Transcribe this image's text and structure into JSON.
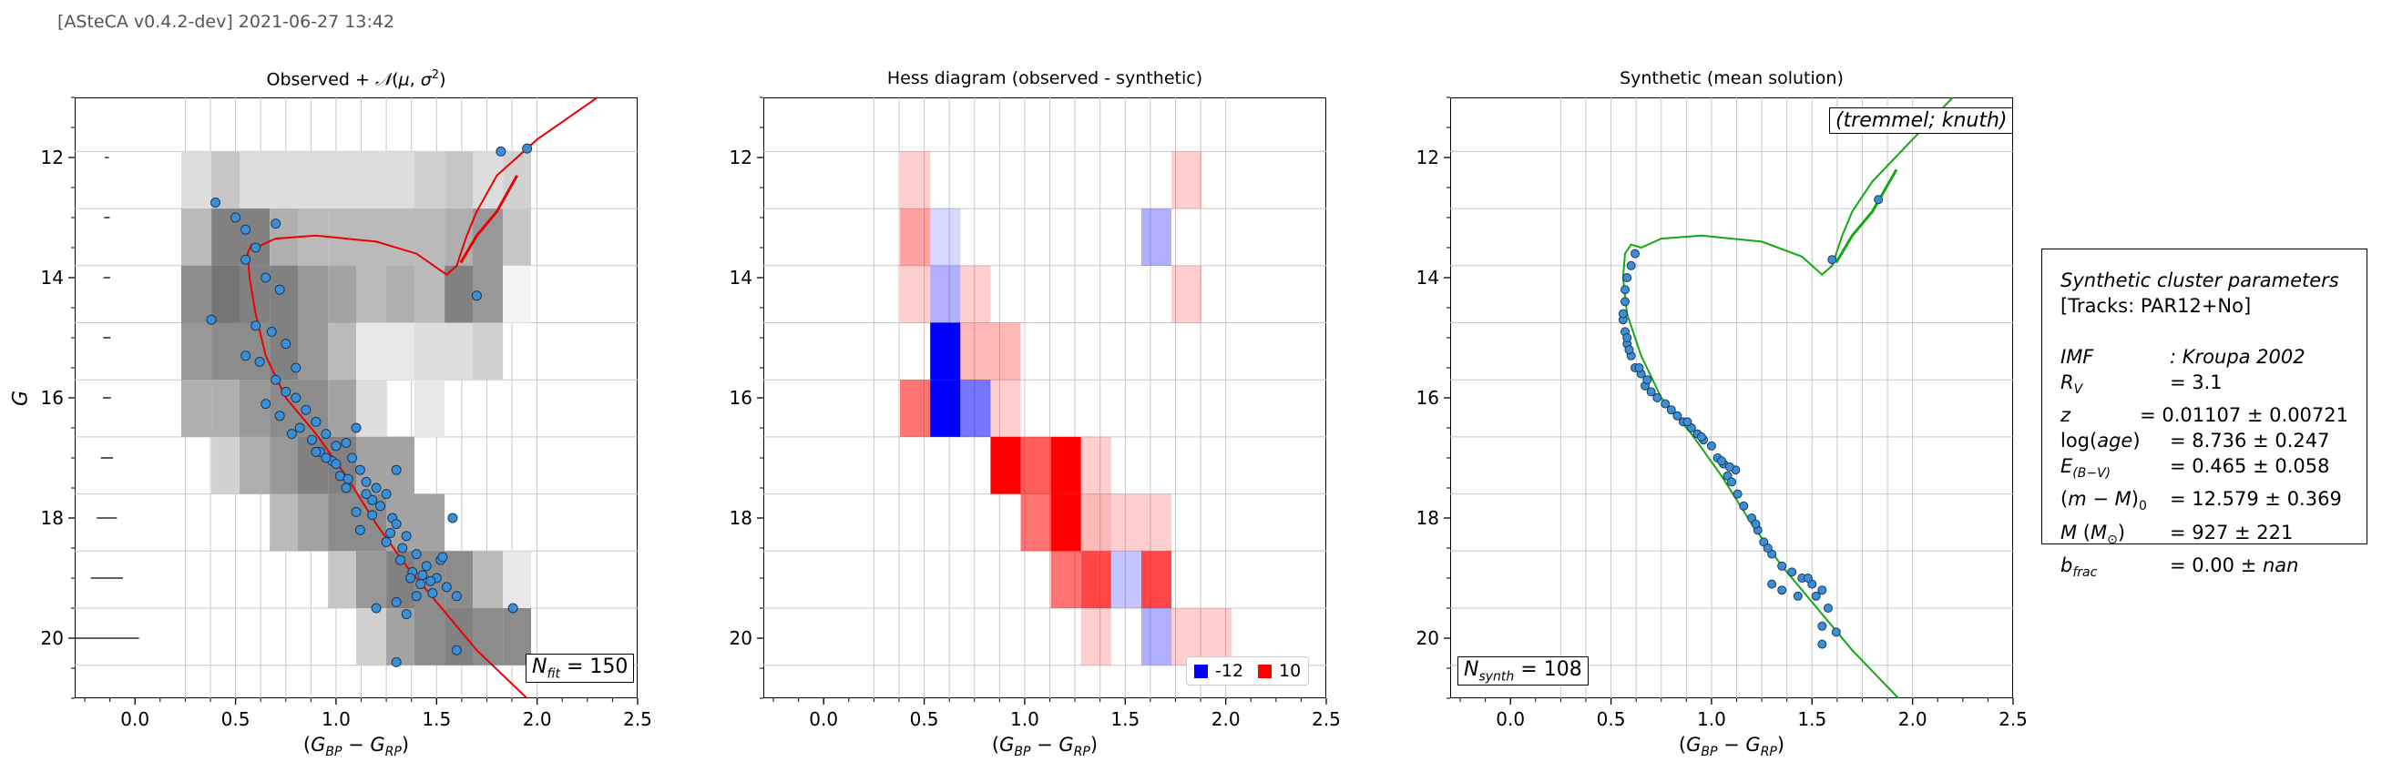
{
  "header": "[ASteCA v0.4.2-dev] 2021-06-27 13:42",
  "panels": {
    "left": {
      "title": "Observed + 𝒩(μ, σ²)",
      "ylabel": "G",
      "xlabel": "(G_BP − G_RP)",
      "box": "N_fit = 150"
    },
    "middle": {
      "title": "Hess diagram (observed - synthetic)",
      "xlabel": "(G_BP − G_RP)",
      "legend_neg": "-12",
      "legend_pos": "10"
    },
    "right": {
      "title": "Synthetic (mean solution)",
      "xlabel": "(G_BP − G_RP)",
      "box_top": "(tremmel; knuth)",
      "box_bottom": "N_synth = 108"
    }
  },
  "info": {
    "title": "Synthetic cluster parameters",
    "tracks": "[Tracks: PAR12+No]",
    "rows": [
      {
        "label": "IMF",
        "value": ": Kroupa 2002"
      },
      {
        "label": "R_V",
        "value": "= 3.1"
      },
      {
        "label": "z",
        "value": "= 0.01107 ± 0.00721"
      },
      {
        "label": "log(age)",
        "value": "= 8.736 ± 0.247"
      },
      {
        "label": "E_(B−V)",
        "value": "= 0.465 ± 0.058"
      },
      {
        "label": "(m − M)_0",
        "value": "= 12.579 ± 0.369"
      },
      {
        "label": "M (M_⊙)",
        "value": "= 927 ± 221"
      },
      {
        "label": "b_frac",
        "value": "= 0.00 ± nan"
      }
    ]
  },
  "colors": {
    "observed": "#3c8fd4",
    "synthetic": "#3c8fd4",
    "isochrone_left": "#ee0000",
    "isochrone_right": "#11aa11",
    "neg": "#0000ff",
    "pos": "#ff0000"
  },
  "chart_data": [
    {
      "type": "scatter",
      "name": "observed",
      "xlim": [
        -0.3,
        2.5
      ],
      "ylim": [
        21.0,
        11.0
      ],
      "xticks": [
        0.0,
        0.5,
        1.0,
        1.5,
        2.0,
        2.5
      ],
      "yticks": [
        12,
        14,
        16,
        18,
        20
      ],
      "xbins": [
        0.23,
        0.38,
        0.52,
        0.67,
        0.81,
        0.96,
        1.1,
        1.25,
        1.39,
        1.54,
        1.68,
        1.83,
        1.97
      ],
      "ybins": [
        11.9,
        12.85,
        13.8,
        14.75,
        15.7,
        16.65,
        17.6,
        18.55,
        19.5,
        20.45
      ],
      "density": [
        [
          0.15,
          0.25,
          0.15,
          0.15,
          0.15,
          0.15,
          0.15,
          0.15,
          0.2,
          0.25,
          0.15,
          0.2
        ],
        [
          0.3,
          0.55,
          0.55,
          0.35,
          0.3,
          0.3,
          0.3,
          0.3,
          0.3,
          0.35,
          0.45,
          0.25
        ],
        [
          0.5,
          0.6,
          0.55,
          0.55,
          0.45,
          0.4,
          0.3,
          0.35,
          0.3,
          0.55,
          0.45,
          0.05
        ],
        [
          0.45,
          0.5,
          0.5,
          0.55,
          0.45,
          0.3,
          0.1,
          0.1,
          0.15,
          0.15,
          0.2,
          0
        ],
        [
          0.35,
          0.35,
          0.45,
          0.5,
          0.5,
          0.4,
          0.15,
          0.0,
          0.1,
          0.0,
          0.0,
          0
        ],
        [
          0,
          0.2,
          0.35,
          0.45,
          0.55,
          0.55,
          0.4,
          0.4,
          0.0,
          0.0,
          0.0,
          0
        ],
        [
          0,
          0,
          0,
          0.3,
          0.4,
          0.5,
          0.5,
          0.4,
          0.4,
          0.0,
          0.0,
          0
        ],
        [
          0,
          0,
          0,
          0,
          0,
          0.25,
          0.45,
          0.55,
          0.5,
          0.5,
          0.3,
          0.1
        ],
        [
          0,
          0,
          0,
          0,
          0,
          0,
          0.2,
          0.4,
          0.5,
          0.55,
          0.5,
          0.5
        ]
      ],
      "errors": [
        {
          "y": 12.0,
          "xerr": 0.005
        },
        {
          "y": 13.0,
          "xerr": 0.007
        },
        {
          "y": 14.0,
          "xerr": 0.008
        },
        {
          "y": 15.0,
          "xerr": 0.009
        },
        {
          "y": 16.0,
          "xerr": 0.01
        },
        {
          "y": 17.0,
          "xerr": 0.015
        },
        {
          "y": 18.0,
          "xerr": 0.025
        },
        {
          "y": 19.0,
          "xerr": 0.04
        },
        {
          "y": 20.0,
          "xerr": 0.08
        }
      ],
      "points": [
        [
          1.82,
          11.9
        ],
        [
          1.95,
          11.85
        ],
        [
          0.4,
          12.75
        ],
        [
          0.55,
          13.2
        ],
        [
          0.7,
          13.1
        ],
        [
          0.5,
          13.0
        ],
        [
          0.6,
          13.5
        ],
        [
          0.55,
          13.7
        ],
        [
          0.65,
          14.0
        ],
        [
          0.72,
          14.2
        ],
        [
          0.38,
          14.7
        ],
        [
          0.6,
          14.8
        ],
        [
          0.68,
          14.9
        ],
        [
          0.75,
          15.1
        ],
        [
          0.55,
          15.3
        ],
        [
          0.62,
          15.4
        ],
        [
          0.8,
          15.5
        ],
        [
          0.7,
          15.7
        ],
        [
          0.75,
          15.9
        ],
        [
          0.65,
          16.1
        ],
        [
          0.8,
          16.0
        ],
        [
          0.85,
          16.2
        ],
        [
          0.72,
          16.3
        ],
        [
          0.9,
          16.4
        ],
        [
          0.82,
          16.5
        ],
        [
          0.95,
          16.6
        ],
        [
          0.88,
          16.7
        ],
        [
          1.0,
          16.8
        ],
        [
          0.92,
          16.9
        ],
        [
          1.05,
          16.75
        ],
        [
          1.1,
          16.5
        ],
        [
          1.08,
          17.0
        ],
        [
          0.98,
          17.05
        ],
        [
          1.12,
          17.2
        ],
        [
          1.02,
          17.3
        ],
        [
          1.15,
          17.4
        ],
        [
          1.2,
          17.5
        ],
        [
          1.05,
          17.5
        ],
        [
          1.25,
          17.6
        ],
        [
          1.18,
          17.7
        ],
        [
          1.3,
          17.2
        ],
        [
          1.22,
          17.8
        ],
        [
          1.1,
          17.9
        ],
        [
          1.28,
          18.0
        ],
        [
          1.3,
          18.1
        ],
        [
          1.35,
          18.3
        ],
        [
          1.25,
          18.4
        ],
        [
          1.4,
          18.6
        ],
        [
          1.32,
          18.7
        ],
        [
          1.45,
          18.8
        ],
        [
          1.38,
          18.9
        ],
        [
          1.5,
          19.0
        ],
        [
          1.42,
          19.1
        ],
        [
          1.55,
          19.15
        ],
        [
          1.48,
          19.25
        ],
        [
          1.3,
          19.4
        ],
        [
          1.4,
          19.3
        ],
        [
          1.6,
          19.3
        ],
        [
          1.2,
          19.5
        ],
        [
          1.35,
          19.6
        ],
        [
          1.52,
          18.7
        ],
        [
          1.58,
          18.0
        ],
        [
          1.7,
          14.3
        ],
        [
          1.88,
          19.5
        ],
        [
          1.3,
          20.4
        ],
        [
          1.6,
          20.2
        ],
        [
          0.9,
          16.9
        ],
        [
          1.0,
          17.1
        ],
        [
          1.15,
          17.6
        ],
        [
          1.12,
          18.2
        ],
        [
          0.78,
          16.6
        ],
        [
          0.95,
          17.0
        ],
        [
          1.06,
          17.35
        ],
        [
          1.18,
          17.95
        ],
        [
          1.27,
          18.25
        ],
        [
          1.33,
          18.5
        ],
        [
          1.43,
          18.95
        ],
        [
          1.47,
          19.05
        ],
        [
          1.37,
          19.0
        ],
        [
          1.53,
          18.65
        ]
      ],
      "isochrone": [
        [
          1.95,
          21.0
        ],
        [
          1.7,
          20.2
        ],
        [
          1.5,
          19.4
        ],
        [
          1.35,
          18.8
        ],
        [
          1.2,
          18.1
        ],
        [
          1.05,
          17.3
        ],
        [
          0.9,
          16.6
        ],
        [
          0.75,
          16.0
        ],
        [
          0.65,
          15.3
        ],
        [
          0.6,
          14.6
        ],
        [
          0.57,
          14.0
        ],
        [
          0.56,
          13.6
        ],
        [
          0.58,
          13.45
        ],
        [
          0.6,
          13.5
        ],
        [
          0.7,
          13.35
        ],
        [
          0.9,
          13.3
        ],
        [
          1.2,
          13.4
        ],
        [
          1.4,
          13.6
        ],
        [
          1.55,
          13.95
        ],
        [
          1.6,
          13.8
        ],
        [
          1.65,
          13.3
        ],
        [
          1.7,
          12.9
        ],
        [
          1.8,
          12.3
        ],
        [
          2.0,
          11.7
        ],
        [
          2.3,
          11.0
        ]
      ],
      "isochrone_branch": [
        [
          1.62,
          13.75
        ],
        [
          1.7,
          13.3
        ],
        [
          1.8,
          12.9
        ],
        [
          1.9,
          12.3
        ]
      ]
    },
    {
      "type": "heatmap",
      "name": "hess",
      "xlim": [
        -0.3,
        2.5
      ],
      "ylim": [
        21.0,
        11.0
      ],
      "xticks": [
        0.0,
        0.5,
        1.0,
        1.5,
        2.0,
        2.5
      ],
      "yticks": [
        12,
        14,
        16,
        18,
        20
      ],
      "xbins": [
        0.38,
        0.53,
        0.68,
        0.83,
        0.98,
        1.13,
        1.28,
        1.43,
        1.58,
        1.73,
        1.88,
        2.03
      ],
      "ybins": [
        11.9,
        12.85,
        13.8,
        14.75,
        15.7,
        16.65,
        17.6,
        18.55,
        19.5,
        20.45
      ],
      "values": [
        [
          1,
          0,
          0,
          0,
          0,
          0,
          0,
          0,
          0,
          1,
          0
        ],
        [
          3,
          -1,
          0,
          0,
          0,
          0,
          0,
          0,
          -3,
          0,
          0
        ],
        [
          1,
          -3,
          1,
          0,
          0,
          0,
          0,
          0,
          0,
          1,
          0
        ],
        [
          0,
          -12,
          2,
          2,
          0,
          0,
          0,
          0,
          0,
          0,
          0
        ],
        [
          5,
          -12,
          -6,
          1,
          0,
          0,
          0,
          0,
          0,
          0,
          0
        ],
        [
          0,
          0,
          0,
          10,
          6,
          10,
          1,
          0,
          0,
          0,
          0
        ],
        [
          0,
          0,
          0,
          0,
          5,
          10,
          2,
          1,
          1,
          0,
          0
        ],
        [
          0,
          0,
          0,
          0,
          0,
          5,
          7,
          -2,
          7,
          0,
          0
        ],
        [
          0,
          0,
          0,
          0,
          0,
          0,
          1,
          0,
          -3,
          1,
          1
        ]
      ],
      "vmin": -12,
      "vmax": 10
    },
    {
      "type": "scatter",
      "name": "synthetic",
      "xlim": [
        -0.3,
        2.5
      ],
      "ylim": [
        21.0,
        11.0
      ],
      "xticks": [
        0.0,
        0.5,
        1.0,
        1.5,
        2.0,
        2.5
      ],
      "yticks": [
        12,
        14,
        16,
        18,
        20
      ],
      "points": [
        [
          1.83,
          12.7
        ],
        [
          1.6,
          13.7
        ],
        [
          0.62,
          13.6
        ],
        [
          0.6,
          13.8
        ],
        [
          0.58,
          14.0
        ],
        [
          0.57,
          14.4
        ],
        [
          0.56,
          14.7
        ],
        [
          0.57,
          14.9
        ],
        [
          0.58,
          15.1
        ],
        [
          0.6,
          15.3
        ],
        [
          0.62,
          15.5
        ],
        [
          0.65,
          15.6
        ],
        [
          0.67,
          15.8
        ],
        [
          0.7,
          15.9
        ],
        [
          0.73,
          16.0
        ],
        [
          0.77,
          16.1
        ],
        [
          0.8,
          16.2
        ],
        [
          0.83,
          16.3
        ],
        [
          0.86,
          16.4
        ],
        [
          0.9,
          16.5
        ],
        [
          0.93,
          16.6
        ],
        [
          0.96,
          16.7
        ],
        [
          1.0,
          16.8
        ],
        [
          1.03,
          17.0
        ],
        [
          1.06,
          17.1
        ],
        [
          1.08,
          17.3
        ],
        [
          1.1,
          17.4
        ],
        [
          1.13,
          17.6
        ],
        [
          1.16,
          17.8
        ],
        [
          1.2,
          18.0
        ],
        [
          1.23,
          18.2
        ],
        [
          1.26,
          18.4
        ],
        [
          1.3,
          18.6
        ],
        [
          1.35,
          18.8
        ],
        [
          1.4,
          18.9
        ],
        [
          1.45,
          19.0
        ],
        [
          1.5,
          19.1
        ],
        [
          1.55,
          19.2
        ],
        [
          1.58,
          19.5
        ],
        [
          1.55,
          19.8
        ],
        [
          1.62,
          19.9
        ],
        [
          1.55,
          20.1
        ],
        [
          1.3,
          19.1
        ],
        [
          1.35,
          19.2
        ],
        [
          1.43,
          19.3
        ],
        [
          0.58,
          15.0
        ],
        [
          0.59,
          15.2
        ],
        [
          0.64,
          15.5
        ],
        [
          0.68,
          15.7
        ],
        [
          0.88,
          16.4
        ],
        [
          1.05,
          17.05
        ],
        [
          1.12,
          17.2
        ],
        [
          1.22,
          18.1
        ],
        [
          1.28,
          18.5
        ],
        [
          1.48,
          19.0
        ],
        [
          1.52,
          19.3
        ],
        [
          0.56,
          14.6
        ],
        [
          0.57,
          14.2
        ],
        [
          0.95,
          16.65
        ],
        [
          1.09,
          17.15
        ]
      ],
      "isochrone": [
        [
          1.93,
          21.0
        ],
        [
          1.7,
          20.2
        ],
        [
          1.5,
          19.4
        ],
        [
          1.35,
          18.8
        ],
        [
          1.2,
          18.1
        ],
        [
          1.05,
          17.3
        ],
        [
          0.9,
          16.6
        ],
        [
          0.75,
          16.0
        ],
        [
          0.65,
          15.3
        ],
        [
          0.58,
          14.6
        ],
        [
          0.56,
          14.0
        ],
        [
          0.57,
          13.6
        ],
        [
          0.6,
          13.45
        ],
        [
          0.65,
          13.5
        ],
        [
          0.75,
          13.35
        ],
        [
          0.95,
          13.3
        ],
        [
          1.25,
          13.4
        ],
        [
          1.45,
          13.65
        ],
        [
          1.55,
          13.95
        ],
        [
          1.6,
          13.8
        ],
        [
          1.65,
          13.3
        ],
        [
          1.7,
          12.9
        ],
        [
          1.8,
          12.4
        ],
        [
          2.0,
          11.7
        ],
        [
          2.2,
          11.0
        ]
      ],
      "isochrone_branch": [
        [
          1.62,
          13.75
        ],
        [
          1.7,
          13.3
        ],
        [
          1.8,
          12.9
        ],
        [
          1.92,
          12.2
        ]
      ]
    }
  ]
}
